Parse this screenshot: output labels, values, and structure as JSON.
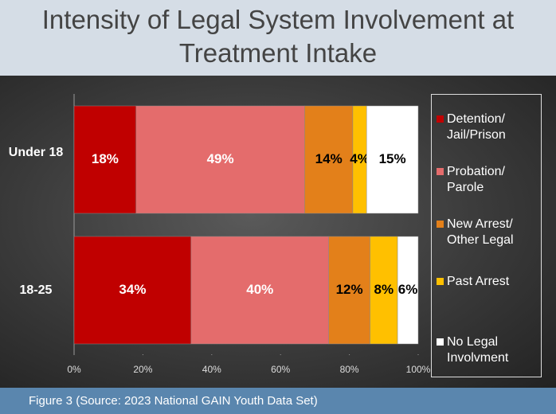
{
  "chart_data": {
    "type": "stacked_barh",
    "title": "Intensity of Legal System Involvement at Treatment Intake",
    "caption": "Figure 3 (Source: 2023 National GAIN Youth Data Set)",
    "categories": [
      "Under 18",
      "18-25"
    ],
    "series": [
      {
        "name": "Detention/ Jail/Prison",
        "color": "#c00000",
        "label_color": "#ffffff",
        "values": [
          18,
          34
        ],
        "value_labels": [
          "18%",
          "34%"
        ]
      },
      {
        "name": "Probation/ Parole",
        "color": "#e46c6c",
        "label_color": "#ffffff",
        "values": [
          49,
          40
        ],
        "value_labels": [
          "49%",
          "40%"
        ]
      },
      {
        "name": "New Arrest/ Other Legal",
        "color": "#e3801a",
        "label_color": "#000000",
        "values": [
          14,
          12
        ],
        "value_labels": [
          "14%",
          "12%"
        ]
      },
      {
        "name": "Past Arrest",
        "color": "#ffc000",
        "label_color": "#000000",
        "values": [
          4,
          8
        ],
        "value_labels": [
          "4%",
          "8%"
        ]
      },
      {
        "name": "No Legal Involvment",
        "color": "#ffffff",
        "label_color": "#000000",
        "values": [
          15,
          6
        ],
        "value_labels": [
          "15%",
          "6%"
        ]
      }
    ],
    "xlim": [
      0,
      100
    ],
    "xticks": [
      {
        "value": 0,
        "label": "0%"
      },
      {
        "value": 20,
        "label": "20%"
      },
      {
        "value": 40,
        "label": "40%"
      },
      {
        "value": 60,
        "label": "60%"
      },
      {
        "value": 80,
        "label": "80%"
      },
      {
        "value": 100,
        "label": "100%"
      }
    ],
    "legend": "right"
  }
}
